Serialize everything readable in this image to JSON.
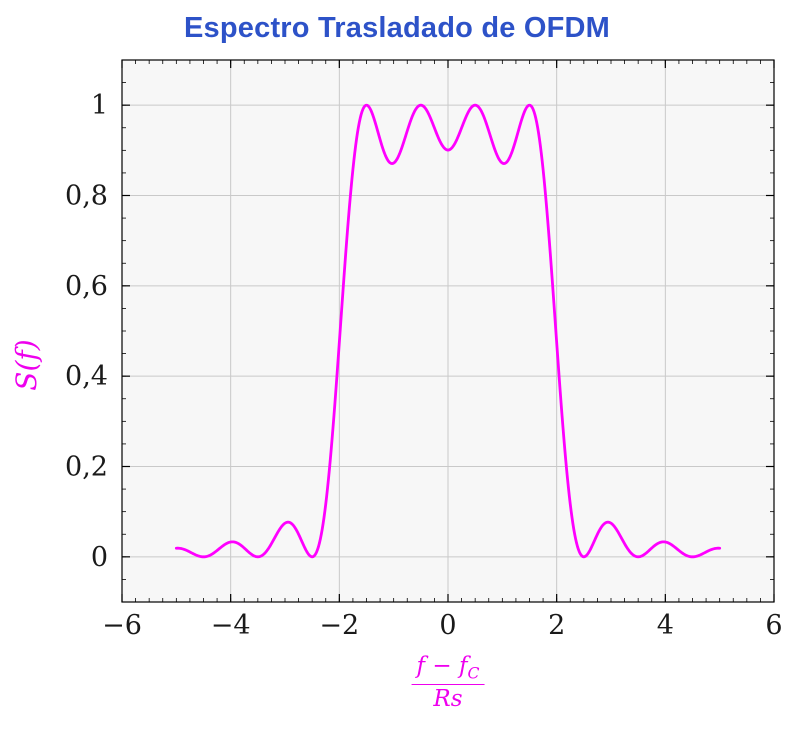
{
  "chart_data": {
    "type": "line",
    "title": "Espectro Trasladado de OFDM",
    "ylabel_display": "S(f)",
    "xlabel_parts": {
      "num_main": "f − f",
      "num_sub": "C",
      "den": "Rs"
    },
    "xlim": [
      -6,
      6
    ],
    "ylim": [
      -0.1,
      1.1
    ],
    "x_major_ticks": [
      -6,
      -4,
      -2,
      0,
      2,
      4,
      6
    ],
    "x_tick_labels": [
      "−6",
      "−4",
      "−2",
      "0",
      "2",
      "4",
      "6"
    ],
    "y_major_ticks": [
      0,
      0.2,
      0.4,
      0.6,
      0.8,
      1
    ],
    "y_tick_labels": [
      "0",
      "0,2",
      "0,4",
      "0,6",
      "0,8",
      "1"
    ],
    "x_minor_step": 0.25,
    "y_minor_step": 0.05,
    "grid": true,
    "legend": "none",
    "model": {
      "description": "OFDM power spectrum: sum of squared sinc lobes of 4 subcarriers, plotted over normalized frequency (f - fC)/Rs from -5 to 5",
      "subcarriers": [
        -1.5,
        -0.5,
        0.5,
        1.5
      ],
      "x_range": [
        -5,
        5
      ],
      "samples": 601
    },
    "key_points": [
      {
        "x": -5.0,
        "y": 0.019
      },
      {
        "x": -4.5,
        "y": 0.0
      },
      {
        "x": -4.0,
        "y": 0.033
      },
      {
        "x": -3.5,
        "y": 0.0
      },
      {
        "x": -3.0,
        "y": 0.075
      },
      {
        "x": -2.5,
        "y": 0.0
      },
      {
        "x": -2.0,
        "y": 0.47
      },
      {
        "x": -1.5,
        "y": 1.0
      },
      {
        "x": -1.0,
        "y": 0.87
      },
      {
        "x": -0.5,
        "y": 1.0
      },
      {
        "x": 0.0,
        "y": 0.9
      },
      {
        "x": 0.5,
        "y": 1.0
      },
      {
        "x": 1.0,
        "y": 0.87
      },
      {
        "x": 1.5,
        "y": 1.0
      },
      {
        "x": 2.0,
        "y": 0.47
      },
      {
        "x": 2.5,
        "y": 0.0
      },
      {
        "x": 3.0,
        "y": 0.075
      },
      {
        "x": 3.5,
        "y": 0.0
      },
      {
        "x": 4.0,
        "y": 0.033
      },
      {
        "x": 4.5,
        "y": 0.0
      },
      {
        "x": 5.0,
        "y": 0.019
      }
    ],
    "colors": {
      "curve": "#ff00ff",
      "title": "#2d52c8",
      "axis_label": "#ee00ee",
      "grid": "#c9c9c9",
      "plot_bg": "#f7f7f7",
      "frame": "#000000",
      "tick_text": "#1a1a1a"
    }
  }
}
